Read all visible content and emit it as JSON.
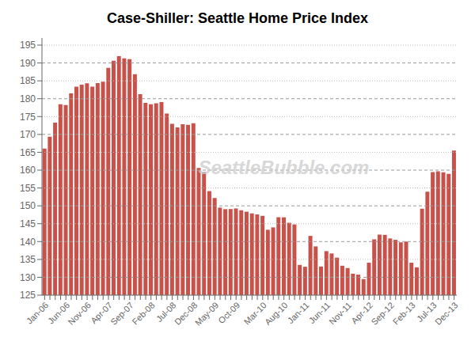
{
  "chart_data": {
    "type": "bar",
    "title": "Case-Shiller: Seattle Home Price Index",
    "color": "#c8524a",
    "ylim": [
      125,
      197
    ],
    "yticks": [
      125,
      130,
      135,
      140,
      145,
      150,
      155,
      160,
      165,
      170,
      175,
      180,
      185,
      190,
      195
    ],
    "grid": true,
    "annotations": [
      "SeattleBubble.com"
    ],
    "categories": [
      "Jan-06",
      null,
      null,
      null,
      "Jun-06",
      null,
      null,
      null,
      "Nov-06",
      null,
      null,
      null,
      "Apr-07",
      null,
      null,
      null,
      "Sep-07",
      null,
      null,
      null,
      "Feb-08",
      null,
      null,
      null,
      "Jul-08",
      null,
      null,
      null,
      "Dec-08",
      null,
      null,
      null,
      "May-09",
      null,
      null,
      null,
      "Oct-09",
      null,
      null,
      null,
      null,
      "Mar-10",
      null,
      null,
      null,
      "Aug-10",
      null,
      null,
      null,
      "Jan-11",
      null,
      null,
      null,
      "Jun-11",
      null,
      null,
      null,
      "Nov-11",
      null,
      null,
      null,
      "Apr-12",
      null,
      null,
      null,
      "Sep-12",
      null,
      null,
      null,
      "Feb-13",
      null,
      null,
      null,
      "Jul-13",
      null,
      null,
      null,
      "Dec-13"
    ],
    "values": [
      166.06,
      169.36,
      173.27,
      178.43,
      178.22,
      181.5,
      183.38,
      183.92,
      184.3,
      183.35,
      184.39,
      184.77,
      188.66,
      190.62,
      191.89,
      191.3,
      191.05,
      186.85,
      181.26,
      178.86,
      178.44,
      178.74,
      179.07,
      175.85,
      172.95,
      171.95,
      172.83,
      172.7,
      173.14,
      160.59,
      159.46,
      154.13,
      152.2,
      149.5,
      149.07,
      149.11,
      149.27,
      148.77,
      148.37,
      147.89,
      147.6,
      147.2,
      143.3,
      143.97,
      146.82,
      146.79,
      145.26,
      144.8,
      133.46,
      132.95,
      141.59,
      138.65,
      133.01,
      137.32,
      136.67,
      135.5,
      133.24,
      132.59,
      131.01,
      130.74,
      129.49,
      134.09,
      140.62,
      141.95,
      141.88,
      140.88,
      140.5,
      139.78,
      140.0,
      134.11,
      132.79,
      149.2,
      153.98,
      159.45,
      159.65,
      159.38,
      158.93,
      165.47
    ]
  }
}
